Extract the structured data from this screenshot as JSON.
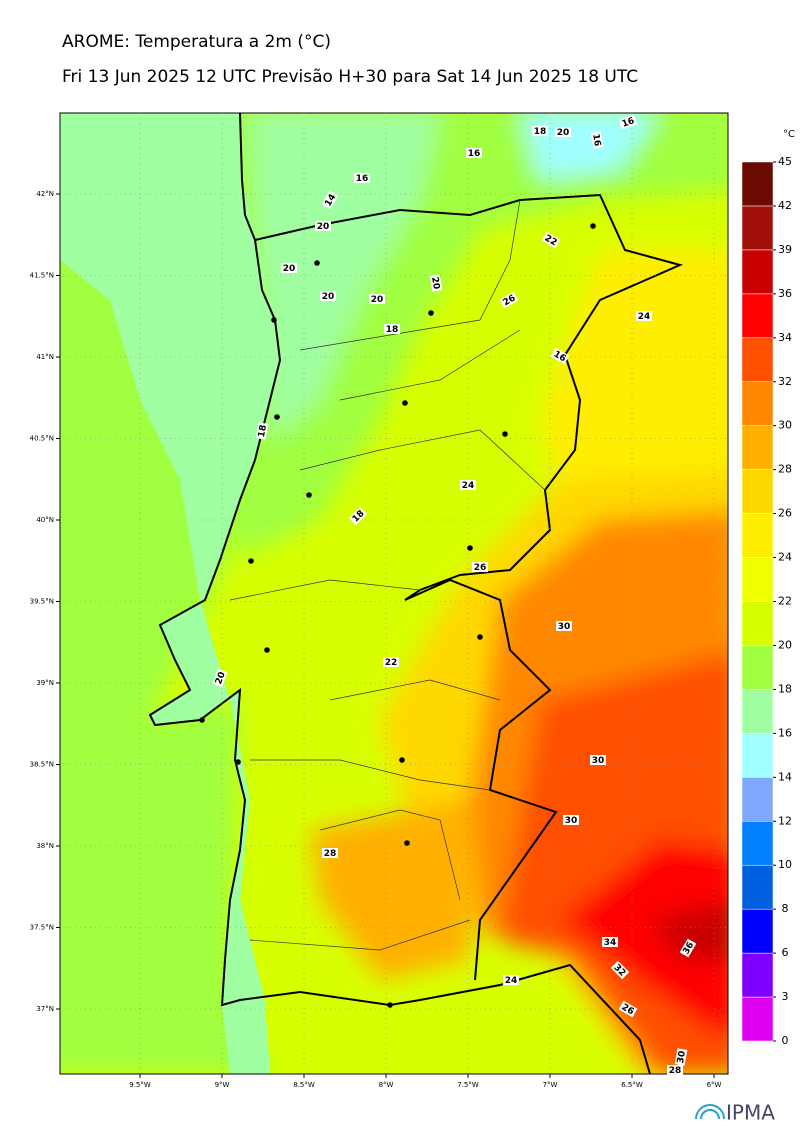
{
  "header": {
    "title": "AROME: Temperatura a 2m (°C)",
    "subtitle": "Fri 13 Jun 2025 12 UTC Previsão H+30 para Sat 14 Jun 2025 18 UTC"
  },
  "map": {
    "lon_ticks": [
      {
        "value": -9.5,
        "label": "9.5°W"
      },
      {
        "value": -9,
        "label": "9°W"
      },
      {
        "value": -8.5,
        "label": "8.5°W"
      },
      {
        "value": -8,
        "label": "8°W"
      },
      {
        "value": -7.5,
        "label": "7.5°W"
      },
      {
        "value": -7,
        "label": "7°W"
      },
      {
        "value": -6.5,
        "label": "6.5°W"
      },
      {
        "value": -6,
        "label": "6°W"
      }
    ],
    "lat_ticks": [
      {
        "value": 42,
        "label": "42°N"
      },
      {
        "value": 41.5,
        "label": "41.5°N"
      },
      {
        "value": 41,
        "label": "41°N"
      },
      {
        "value": 40.5,
        "label": "40.5°N"
      },
      {
        "value": 40,
        "label": "40°N"
      },
      {
        "value": 39.5,
        "label": "39.5°N"
      },
      {
        "value": 39,
        "label": "39°N"
      },
      {
        "value": 38.5,
        "label": "38.5°N"
      },
      {
        "value": 38,
        "label": "38°N"
      },
      {
        "value": 37.5,
        "label": "37.5°N"
      },
      {
        "value": 37,
        "label": "37°N"
      }
    ],
    "contour_labels": [
      18,
      20,
      16,
      16,
      16,
      16,
      14,
      20,
      22,
      20,
      20,
      20,
      20,
      26,
      24,
      18,
      16,
      18,
      24,
      18,
      26,
      30,
      22,
      20,
      30,
      30,
      28,
      34,
      32,
      36,
      24,
      26,
      30,
      28
    ]
  },
  "colorbar": {
    "unit": "°C",
    "ticks": [
      0,
      3,
      6,
      8,
      10,
      12,
      14,
      16,
      18,
      20,
      22,
      24,
      26,
      28,
      30,
      32,
      34,
      36,
      39,
      42,
      45
    ],
    "colors": [
      "#e000f0",
      "#8000ff",
      "#0000ff",
      "#0060e0",
      "#0080ff",
      "#80a8ff",
      "#a0ffff",
      "#a0ffa0",
      "#a0ff40",
      "#d8ff00",
      "#f0ff00",
      "#ffee00",
      "#ffd800",
      "#ffb000",
      "#ff8800",
      "#ff5000",
      "#ff0000",
      "#c80000",
      "#a01008",
      "#6a0a00"
    ]
  },
  "logo": "IPMA"
}
